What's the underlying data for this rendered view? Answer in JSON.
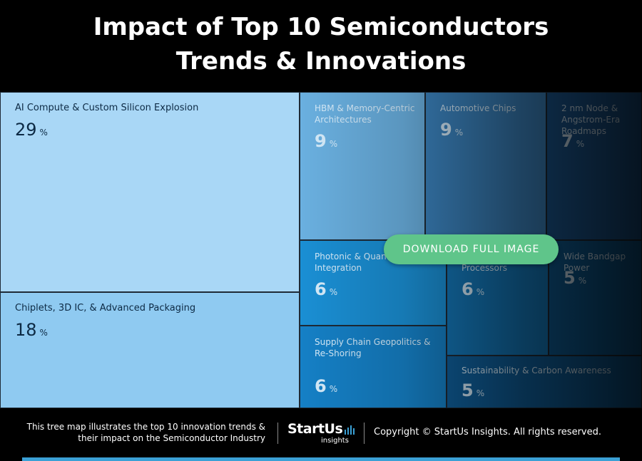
{
  "header": {
    "title_line1": "Impact of Top 10 Semiconductors",
    "title_line2": "Trends & Innovations"
  },
  "chart_data": {
    "type": "treemap",
    "unit": "%",
    "items": [
      {
        "label": "AI Compute & Custom Silicon Explosion",
        "value": 29,
        "color": "#a9d7f6"
      },
      {
        "label": "Chiplets, 3D IC, & Advanced Packaging",
        "value": 18,
        "color": "#8fcaf1"
      },
      {
        "label": "HBM & Memory-Centric Architectures",
        "value": 9,
        "color": "#6ab0e0"
      },
      {
        "label": "Automotive Chips",
        "value": 9,
        "color": "#3c85c1"
      },
      {
        "label": "2 nm Node & Angstrom-Era Roadmaps",
        "value": 7,
        "color": "#1c5a95"
      },
      {
        "label": "Photonic & Quantum Integration",
        "value": 6,
        "color": "#1a8fd4"
      },
      {
        "label": "Domain-Specific Processors",
        "value": 6,
        "color": "#1477b8"
      },
      {
        "label": "Wide Bandgap Power",
        "value": 5,
        "color": "#0e5e97"
      },
      {
        "label": "Supply Chain Geopolitics & Re-Shoring",
        "value": 6,
        "color": "#1580c6"
      },
      {
        "label": "Sustainability & Carbon Awareness",
        "value": 5,
        "color": "#0f5f9b"
      }
    ]
  },
  "overlay": {
    "download_label": "DOWNLOAD FULL IMAGE"
  },
  "footer": {
    "description": "This tree map illustrates the top 10 innovation trends & their impact on the Semiconductor Industry",
    "logo_main": "StartUs",
    "logo_sub": "insights",
    "copyright": "Copyright © StartUs Insights. All rights reserved.",
    "accent_color": "#3aa0d5"
  }
}
